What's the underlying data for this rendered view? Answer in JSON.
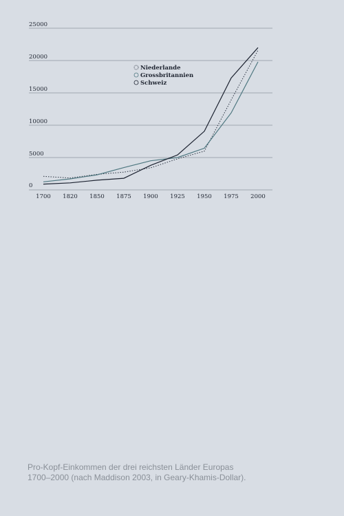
{
  "chart_data": {
    "type": "line",
    "x": [
      "1700",
      "1820",
      "1850",
      "1875",
      "1900",
      "1925",
      "1950",
      "1975",
      "2000"
    ],
    "yticks": [
      0,
      5000,
      10000,
      15000,
      20000,
      25000
    ],
    "ylim": [
      0,
      25000
    ],
    "grid": true,
    "legend_position": "top-center",
    "series": [
      {
        "name": "Niederlande",
        "values": [
          2100,
          1840,
          2400,
          2750,
          3420,
          4800,
          5990,
          13900,
          21600
        ],
        "color": "#2a3240",
        "style": "dotted"
      },
      {
        "name": "Grossbritannien",
        "values": [
          1250,
          1700,
          2330,
          3450,
          4500,
          5000,
          6450,
          11900,
          19800
        ],
        "color": "#4e7780",
        "style": "solid"
      },
      {
        "name": "Schweiz",
        "values": [
          890,
          1090,
          1500,
          1800,
          3800,
          5400,
          9060,
          17300,
          22000
        ],
        "color": "#1c2230",
        "style": "solid"
      }
    ]
  },
  "caption": "Pro-Kopf-Einkommen der drei reichsten Länder Europas 1700–2000 (nach Maddison 2003, in Geary-Khamis-Dollar)."
}
